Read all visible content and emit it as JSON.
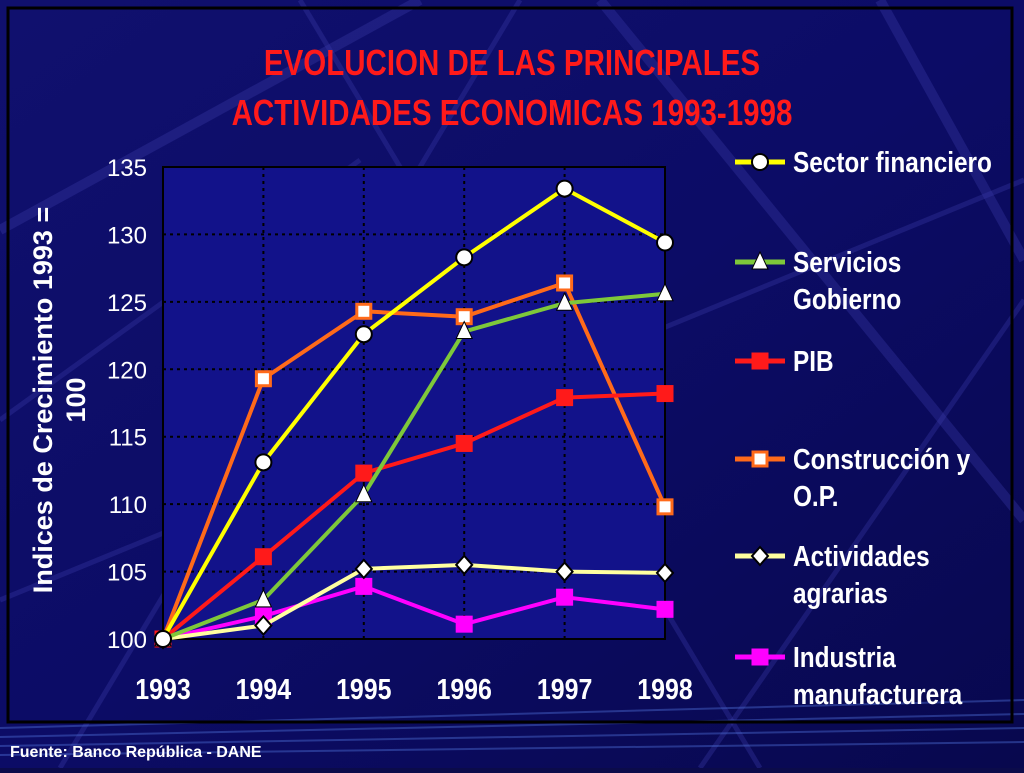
{
  "colors": {
    "background": "#0b0b6e",
    "plot_area": "#12128a",
    "title": "#ff1a1a",
    "text": "#ffffff",
    "grid": "#000000"
  },
  "footer": {
    "source": "Fuente: Banco República - DANE"
  },
  "chart_data": {
    "type": "line",
    "title": [
      "EVOLUCION DE LAS PRINCIPALES",
      "ACTIVIDADES ECONOMICAS 1993-1998"
    ],
    "ylabel": [
      "Indices de Crecimiento 1993 =",
      "100"
    ],
    "xlabel": "",
    "x": [
      1993,
      1994,
      1995,
      1996,
      1997,
      1998
    ],
    "ylim": [
      100,
      135
    ],
    "yticks": [
      100,
      105,
      110,
      115,
      120,
      125,
      130,
      135
    ],
    "grid": true,
    "legend_position": "right",
    "series": [
      {
        "name": [
          "Sector financiero"
        ],
        "color": "#ffff00",
        "marker": "circle",
        "values": [
          100,
          113.1,
          122.6,
          128.3,
          133.4,
          129.4
        ]
      },
      {
        "name": [
          "Servicios",
          "Gobierno"
        ],
        "color": "#7ec83a",
        "marker": "triangle",
        "values": [
          100,
          102.9,
          110.7,
          122.8,
          124.9,
          125.6
        ]
      },
      {
        "name": [
          "PIB"
        ],
        "color": "#ff1a1a",
        "marker": "square",
        "values": [
          100,
          106.1,
          112.3,
          114.5,
          117.9,
          118.2
        ]
      },
      {
        "name": [
          "Construcción y",
          "O.P."
        ],
        "color": "#ff6a1a",
        "marker": "square-open",
        "values": [
          100,
          119.3,
          124.3,
          123.9,
          126.4,
          109.8
        ]
      },
      {
        "name": [
          "Actividades",
          "agrarias"
        ],
        "color": "#ffffa0",
        "marker": "diamond",
        "values": [
          100,
          101.0,
          105.2,
          105.5,
          105.0,
          104.9
        ]
      },
      {
        "name": [
          "Industria",
          "manufacturera"
        ],
        "color": "#ff00ff",
        "marker": "square",
        "values": [
          100,
          101.7,
          103.9,
          101.1,
          103.1,
          102.2
        ]
      }
    ]
  }
}
